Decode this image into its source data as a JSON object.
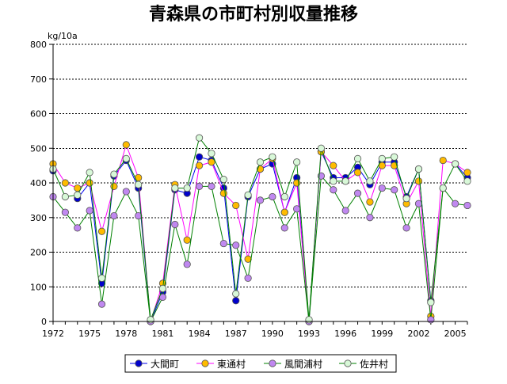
{
  "chart_data": {
    "type": "line",
    "title": "青森県の市町村別収量推移",
    "ylabel": "kg/10a",
    "xlabel": "",
    "ylim": [
      0,
      800
    ],
    "yticks": [
      0,
      100,
      200,
      300,
      400,
      500,
      600,
      700,
      800
    ],
    "grid": true,
    "legend_position": "bottom",
    "x": [
      1972,
      1973,
      1974,
      1975,
      1976,
      1977,
      1978,
      1979,
      1980,
      1981,
      1982,
      1983,
      1984,
      1985,
      1986,
      1987,
      1988,
      1989,
      1990,
      1991,
      1992,
      1993,
      1994,
      1995,
      1996,
      1997,
      1998,
      1999,
      2000,
      2001,
      2002,
      2003,
      2004,
      2005,
      2006
    ],
    "xtick_labels": [
      "1972",
      "1975",
      "1978",
      "1981",
      "1984",
      "1987",
      "1990",
      "1993",
      "1996",
      "1999",
      "2002",
      "2005"
    ],
    "series": [
      {
        "name": "大間町",
        "line_color": "#0000ee",
        "marker_color": "#0000cc",
        "values": [
          435,
          null,
          355,
          400,
          110,
          420,
          465,
          385,
          0,
          85,
          380,
          370,
          475,
          465,
          385,
          60,
          360,
          440,
          455,
          315,
          415,
          0,
          490,
          415,
          415,
          445,
          395,
          460,
          460,
          360,
          440,
          60,
          null,
          455,
          415
        ]
      },
      {
        "name": "東通村",
        "line_color": "#ff00ff",
        "marker_color": "#ffbb00",
        "values": [
          455,
          400,
          385,
          400,
          260,
          390,
          510,
          415,
          0,
          110,
          395,
          235,
          450,
          460,
          370,
          335,
          180,
          440,
          470,
          315,
          400,
          0,
          490,
          450,
          405,
          430,
          345,
          450,
          450,
          340,
          405,
          15,
          465,
          455,
          430
        ]
      },
      {
        "name": "風間浦村",
        "line_color": "#008000",
        "marker_color": "#c088f0",
        "values": [
          360,
          315,
          270,
          320,
          50,
          305,
          375,
          305,
          0,
          70,
          280,
          165,
          390,
          390,
          225,
          220,
          125,
          350,
          360,
          270,
          325,
          0,
          420,
          380,
          320,
          370,
          300,
          385,
          380,
          270,
          340,
          5,
          385,
          340,
          335
        ]
      },
      {
        "name": "佐井村",
        "line_color": "#008000",
        "marker_color": "#d8f8d8",
        "values": [
          440,
          360,
          365,
          430,
          125,
          425,
          470,
          395,
          5,
          95,
          385,
          385,
          530,
          485,
          410,
          80,
          365,
          460,
          475,
          360,
          460,
          5,
          500,
          405,
          405,
          470,
          405,
          470,
          475,
          355,
          440,
          55,
          385,
          455,
          405
        ]
      }
    ]
  }
}
